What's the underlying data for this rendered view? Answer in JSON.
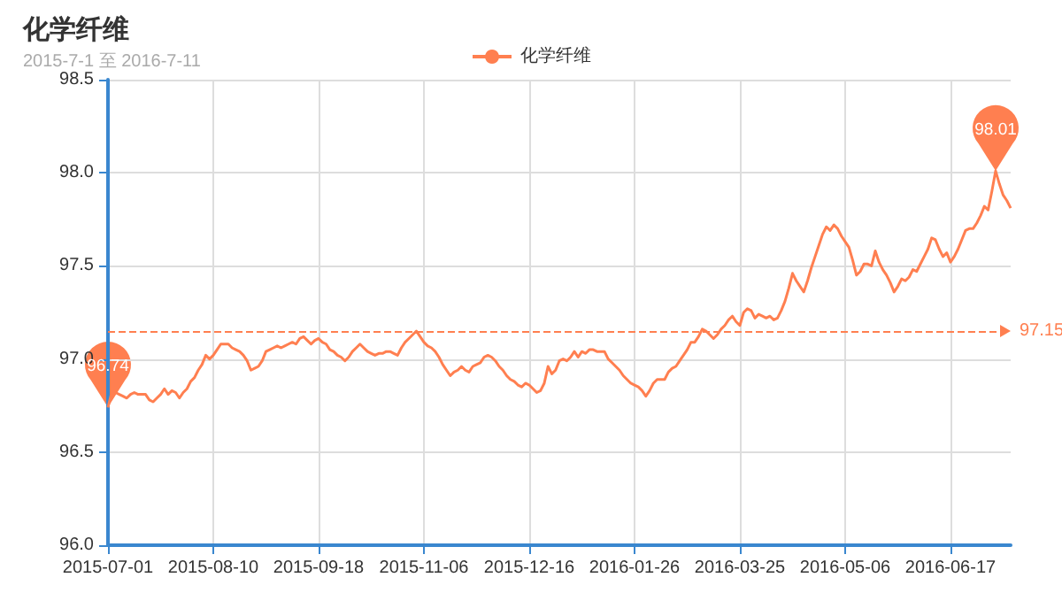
{
  "chart_data": {
    "type": "line",
    "title": "化学纤维",
    "subtitle": "2015-7-1 至 2016-7-11",
    "categories": [
      "2015-07-01",
      null,
      null,
      null,
      null,
      null,
      null,
      null,
      null,
      null,
      null,
      null,
      null,
      null,
      null,
      null,
      null,
      null,
      null,
      null,
      null,
      null,
      null,
      null,
      null,
      null,
      null,
      null,
      "2015-08-10",
      null,
      null,
      null,
      null,
      null,
      null,
      null,
      null,
      null,
      null,
      null,
      null,
      null,
      null,
      null,
      null,
      null,
      null,
      null,
      null,
      null,
      null,
      null,
      null,
      null,
      null,
      null,
      "2015-09-18",
      null,
      null,
      null,
      null,
      null,
      null,
      null,
      null,
      null,
      null,
      null,
      null,
      null,
      null,
      null,
      null,
      null,
      null,
      null,
      null,
      null,
      null,
      null,
      null,
      null,
      null,
      null,
      "2015-11-06",
      null,
      null,
      null,
      null,
      null,
      null,
      null,
      null,
      null,
      null,
      null,
      null,
      null,
      null,
      null,
      null,
      null,
      null,
      null,
      null,
      null,
      null,
      null,
      null,
      null,
      null,
      null,
      "2015-12-16",
      null,
      null,
      null,
      null,
      null,
      null,
      null,
      null,
      null,
      null,
      null,
      null,
      null,
      null,
      null,
      null,
      null,
      null,
      null,
      null,
      null,
      null,
      null,
      null,
      null,
      null,
      null,
      "2016-01-26",
      null,
      null,
      null,
      null,
      null,
      null,
      null,
      null,
      null,
      null,
      null,
      null,
      null,
      null,
      null,
      null,
      null,
      null,
      null,
      null,
      null,
      null,
      null,
      null,
      null,
      null,
      null,
      "2016-03-25",
      null,
      null,
      null,
      null,
      null,
      null,
      null,
      null,
      null,
      null,
      null,
      null,
      null,
      null,
      null,
      null,
      null,
      null,
      null,
      null,
      null,
      null,
      null,
      null,
      null,
      null,
      null,
      "2016-05-06",
      null,
      null,
      null,
      null,
      null,
      null,
      null,
      null,
      null,
      null,
      null,
      null,
      null,
      null,
      null,
      null,
      null,
      null,
      null,
      null,
      null,
      null,
      null,
      null,
      null,
      null,
      null,
      "2016-06-17",
      null,
      null,
      null,
      null,
      null,
      null,
      null,
      null,
      null,
      null,
      null,
      null,
      null,
      null,
      null,
      null
    ],
    "series": [
      {
        "name": "化学纤维",
        "color": "#ff7f50",
        "values": [
          96.74,
          96.82,
          96.82,
          96.81,
          96.8,
          96.79,
          96.81,
          96.82,
          96.81,
          96.81,
          96.81,
          96.78,
          96.77,
          96.79,
          96.81,
          96.84,
          96.81,
          96.83,
          96.82,
          96.79,
          96.82,
          96.84,
          96.88,
          96.9,
          96.94,
          96.97,
          97.02,
          97.0,
          97.02,
          97.05,
          97.08,
          97.08,
          97.08,
          97.06,
          97.05,
          97.04,
          97.02,
          96.99,
          96.94,
          96.95,
          96.96,
          96.99,
          97.04,
          97.05,
          97.06,
          97.07,
          97.06,
          97.07,
          97.08,
          97.09,
          97.08,
          97.11,
          97.12,
          97.1,
          97.08,
          97.1,
          97.11,
          97.09,
          97.08,
          97.05,
          97.04,
          97.02,
          97.01,
          96.99,
          97.01,
          97.04,
          97.06,
          97.08,
          97.06,
          97.04,
          97.03,
          97.02,
          97.03,
          97.03,
          97.04,
          97.04,
          97.03,
          97.02,
          97.06,
          97.09,
          97.11,
          97.13,
          97.15,
          97.12,
          97.09,
          97.07,
          97.06,
          97.04,
          97.01,
          96.97,
          96.94,
          96.91,
          96.93,
          96.94,
          96.96,
          96.94,
          96.93,
          96.96,
          96.97,
          96.98,
          97.01,
          97.02,
          97.01,
          96.99,
          96.96,
          96.94,
          96.91,
          96.89,
          96.88,
          96.86,
          96.85,
          96.87,
          96.86,
          96.84,
          96.82,
          96.83,
          96.87,
          96.96,
          96.92,
          96.94,
          96.99,
          97.0,
          96.99,
          97.01,
          97.04,
          97.01,
          97.04,
          97.03,
          97.05,
          97.05,
          97.04,
          97.04,
          97.04,
          97.0,
          96.98,
          96.96,
          96.94,
          96.91,
          96.89,
          96.87,
          96.86,
          96.85,
          96.83,
          96.8,
          96.83,
          96.87,
          96.89,
          96.89,
          96.89,
          96.93,
          96.95,
          96.96,
          96.99,
          97.02,
          97.05,
          97.09,
          97.09,
          97.12,
          97.16,
          97.15,
          97.13,
          97.11,
          97.13,
          97.16,
          97.18,
          97.21,
          97.23,
          97.2,
          97.18,
          97.25,
          97.27,
          97.26,
          97.22,
          97.24,
          97.23,
          97.22,
          97.23,
          97.21,
          97.22,
          97.26,
          97.31,
          97.38,
          97.46,
          97.42,
          97.39,
          97.36,
          97.42,
          97.49,
          97.55,
          97.61,
          97.67,
          97.71,
          97.69,
          97.72,
          97.7,
          97.66,
          97.63,
          97.6,
          97.53,
          97.45,
          97.47,
          97.51,
          97.51,
          97.5,
          97.58,
          97.52,
          97.48,
          97.45,
          97.41,
          97.36,
          97.39,
          97.43,
          97.42,
          97.44,
          97.48,
          97.47,
          97.51,
          97.55,
          97.59,
          97.65,
          97.64,
          97.59,
          97.55,
          97.57,
          97.52,
          97.55,
          97.59,
          97.64,
          97.69,
          97.7,
          97.7,
          97.73,
          97.77,
          97.82,
          97.8,
          97.9,
          98.01,
          97.94,
          97.88,
          97.85,
          97.81
        ]
      }
    ],
    "ylim": [
      96.0,
      98.5
    ],
    "yticks": [
      {
        "value": 96,
        "label": "96.0"
      },
      {
        "value": 96.5,
        "label": "96.5"
      },
      {
        "value": 97,
        "label": "97.0"
      },
      {
        "value": 97.5,
        "label": "97.5"
      },
      {
        "value": 98,
        "label": "98.0"
      },
      {
        "value": 98.5,
        "label": "98.5"
      }
    ],
    "ref_lines": [
      {
        "axis": "y",
        "value": 97.15,
        "label": "97.15",
        "color": "#ff7f50",
        "line_style": "dashed"
      }
    ],
    "annotations": [
      {
        "text": "96.74",
        "x": "2015-07-01",
        "y": 96.74
      },
      {
        "text": "98.01",
        "y": 98.01
      }
    ],
    "grid": true,
    "legend": "top"
  }
}
